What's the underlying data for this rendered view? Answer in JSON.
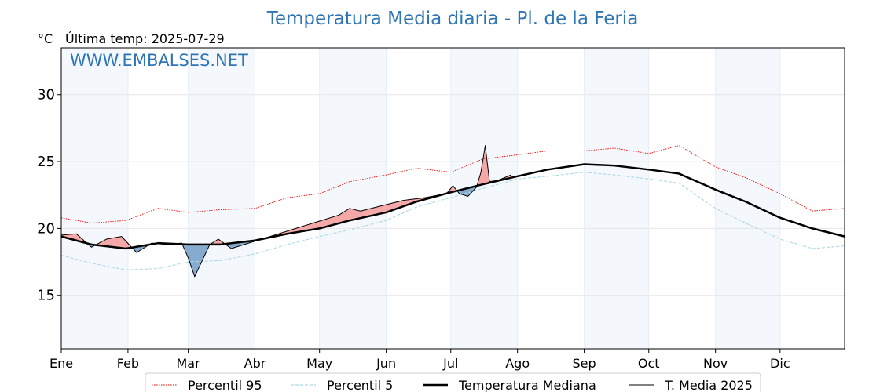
{
  "chart_data": {
    "type": "line",
    "title": "Temperatura Media diaria - Pl. de la Feria",
    "unit": "°C",
    "last_reading": "Última temp: 2025-07-29",
    "watermark": "WWW.EMBALSES.NET",
    "xlabel": "",
    "ylabel": "",
    "ylim": [
      11,
      33.5
    ],
    "yticks": [
      15,
      20,
      25,
      30
    ],
    "grid": true,
    "legend_position": "bottom",
    "months": [
      "Ene",
      "Feb",
      "Mar",
      "Abr",
      "May",
      "Jun",
      "Jul",
      "Ago",
      "Sep",
      "Oct",
      "Nov",
      "Dic"
    ],
    "x": [
      1,
      15,
      31,
      46,
      60,
      75,
      91,
      106,
      121,
      135,
      152,
      166,
      182,
      197,
      213,
      227,
      244,
      258,
      274,
      288,
      305,
      319,
      335,
      350,
      365
    ],
    "series": [
      {
        "name": "Percentil 95",
        "color": "#ff0000",
        "style": "dotted",
        "values": [
          20.8,
          20.4,
          20.6,
          21.5,
          21.2,
          21.4,
          21.5,
          22.3,
          22.6,
          23.5,
          24.0,
          24.5,
          24.2,
          25.2,
          25.5,
          25.8,
          25.8,
          26.0,
          25.6,
          26.2,
          24.6,
          23.8,
          22.6,
          21.3,
          21.5
        ]
      },
      {
        "name": "Percentil 5",
        "color": "#add8e6",
        "style": "dashed",
        "values": [
          18.0,
          17.4,
          16.9,
          17.0,
          17.5,
          17.6,
          18.1,
          18.8,
          19.4,
          19.9,
          20.6,
          21.6,
          22.3,
          23.0,
          23.7,
          23.9,
          24.2,
          24.0,
          23.7,
          23.4,
          21.5,
          20.4,
          19.2,
          18.5,
          18.7
        ]
      },
      {
        "name": "Temperatura Mediana",
        "color": "#000000",
        "style": "solid-thick",
        "values": [
          19.4,
          18.8,
          18.5,
          18.9,
          18.8,
          18.8,
          19.1,
          19.6,
          20.0,
          20.6,
          21.2,
          22.0,
          22.7,
          23.3,
          23.9,
          24.4,
          24.8,
          24.7,
          24.4,
          24.1,
          22.9,
          22.0,
          20.8,
          20.0,
          19.4
        ]
      },
      {
        "name": "T. Media 2025",
        "color": "#000000",
        "style": "solid-thin",
        "x": [
          1,
          8,
          15,
          22,
          29,
          36,
          43,
          50,
          57,
          60,
          63,
          70,
          74,
          80,
          90,
          100,
          110,
          120,
          130,
          135,
          140,
          150,
          160,
          170,
          180,
          183,
          186,
          190,
          194,
          196,
          198,
          200,
          204,
          210
        ],
        "values": [
          19.5,
          19.6,
          18.6,
          19.2,
          19.4,
          18.2,
          18.9,
          18.8,
          18.9,
          17.8,
          16.4,
          18.8,
          19.2,
          18.5,
          19.0,
          19.5,
          20.0,
          20.5,
          21.0,
          21.5,
          21.3,
          21.7,
          22.1,
          22.3,
          22.6,
          23.2,
          22.6,
          22.4,
          23.1,
          24.2,
          26.2,
          23.5,
          23.6,
          24.0
        ]
      }
    ]
  },
  "legend": {
    "items": [
      {
        "label": "Percentil 95"
      },
      {
        "label": "Percentil 5"
      },
      {
        "label": "Temperatura Mediana"
      },
      {
        "label": "T. Media 2025"
      }
    ]
  }
}
